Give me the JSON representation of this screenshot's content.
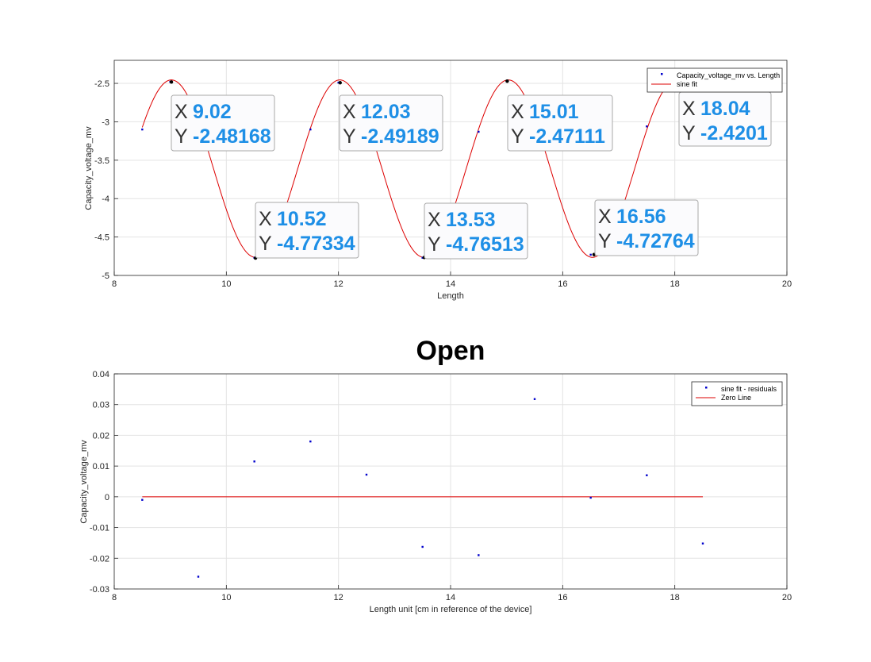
{
  "colors": {
    "marker": "#0000cc",
    "fit_line": "#dd0000",
    "tip_value": "#1e8fe6",
    "grid": "#e3e3e3",
    "axes": "#262626"
  },
  "chart_data": [
    {
      "type": "line",
      "title": "",
      "xlabel": "Length",
      "ylabel": "Capacity_voltage_mv",
      "xlim": [
        8,
        20
      ],
      "ylim": [
        -5,
        -2.2
      ],
      "xticks": [
        8,
        10,
        12,
        14,
        16,
        18,
        20
      ],
      "yticks": [
        -5,
        -4.5,
        -4,
        -3.5,
        -3,
        -2.5
      ],
      "xtick_labels": [
        "8",
        "10",
        "12",
        "14",
        "16",
        "18",
        "20"
      ],
      "ytick_labels": [
        "-5",
        "-4.5",
        "-4",
        "-3.5",
        "-3",
        "-2.5"
      ],
      "grid": true,
      "legend_position": "top-right",
      "series": [
        {
          "name": "Capacity_voltage_mv vs. Length",
          "style": "points",
          "x": [
            8.5,
            9.0,
            10.5,
            11.5,
            12.0,
            13.5,
            14.5,
            15.0,
            16.5,
            17.5,
            18.0
          ],
          "y": [
            -3.1,
            -2.48,
            -4.77,
            -3.1,
            -2.49,
            -4.77,
            -3.13,
            -2.47,
            -4.73,
            -3.06,
            -2.42
          ]
        },
        {
          "name": "sine fit",
          "style": "line",
          "model": {
            "offset": -3.61,
            "amplitude": 1.155,
            "period": 3.005,
            "phase_x": 9.02
          },
          "x_range": [
            8.5,
            18.04
          ]
        }
      ],
      "datatips": [
        {
          "x_key": "X",
          "y_key": "Y",
          "x": "9.02",
          "y": "-2.48168",
          "px": 9.02,
          "py": -2.48168
        },
        {
          "x_key": "X",
          "y_key": "Y",
          "x": "10.52",
          "y": "-4.77334",
          "px": 10.52,
          "py": -4.77334
        },
        {
          "x_key": "X",
          "y_key": "Y",
          "x": "12.03",
          "y": "-2.49189",
          "px": 12.03,
          "py": -2.49189
        },
        {
          "x_key": "X",
          "y_key": "Y",
          "x": "13.53",
          "y": "-4.76513",
          "px": 13.53,
          "py": -4.76513
        },
        {
          "x_key": "X",
          "y_key": "Y",
          "x": "15.01",
          "y": "-2.47111",
          "px": 15.01,
          "py": -2.47111
        },
        {
          "x_key": "X",
          "y_key": "Y",
          "x": "16.56",
          "y": "-4.72764",
          "px": 16.56,
          "py": -4.72764
        },
        {
          "x_key": "X",
          "y_key": "Y",
          "x": "18.04",
          "y": "-2.4201",
          "px": 18.04,
          "py": -2.4201
        }
      ]
    },
    {
      "type": "scatter",
      "title": "Open",
      "xlabel": "Length unit [cm in reference of the device]",
      "ylabel": "Capacity_voltage_mv",
      "xlim": [
        8,
        20
      ],
      "ylim": [
        -0.03,
        0.04
      ],
      "xticks": [
        8,
        10,
        12,
        14,
        16,
        18,
        20
      ],
      "yticks": [
        -0.03,
        -0.02,
        -0.01,
        0,
        0.01,
        0.02,
        0.03,
        0.04
      ],
      "xtick_labels": [
        "8",
        "10",
        "12",
        "14",
        "16",
        "18",
        "20"
      ],
      "ytick_labels": [
        "-0.03",
        "-0.02",
        "-0.01",
        "0",
        "0.01",
        "0.02",
        "0.03",
        "0.04"
      ],
      "grid": true,
      "legend_position": "top-right",
      "series": [
        {
          "name": "sine fit - residuals",
          "style": "points",
          "x": [
            8.5,
            9.5,
            10.5,
            11.5,
            12.5,
            13.5,
            14.5,
            15.5,
            16.5,
            17.5,
            18.5
          ],
          "y": [
            -0.001,
            -0.026,
            0.0115,
            0.018,
            0.0072,
            -0.0163,
            -0.019,
            0.0318,
            -0.0003,
            0.007,
            -0.0152
          ]
        },
        {
          "name": "Zero Line",
          "style": "line",
          "x": [
            8.5,
            18.5
          ],
          "y": [
            0,
            0
          ]
        }
      ]
    }
  ]
}
